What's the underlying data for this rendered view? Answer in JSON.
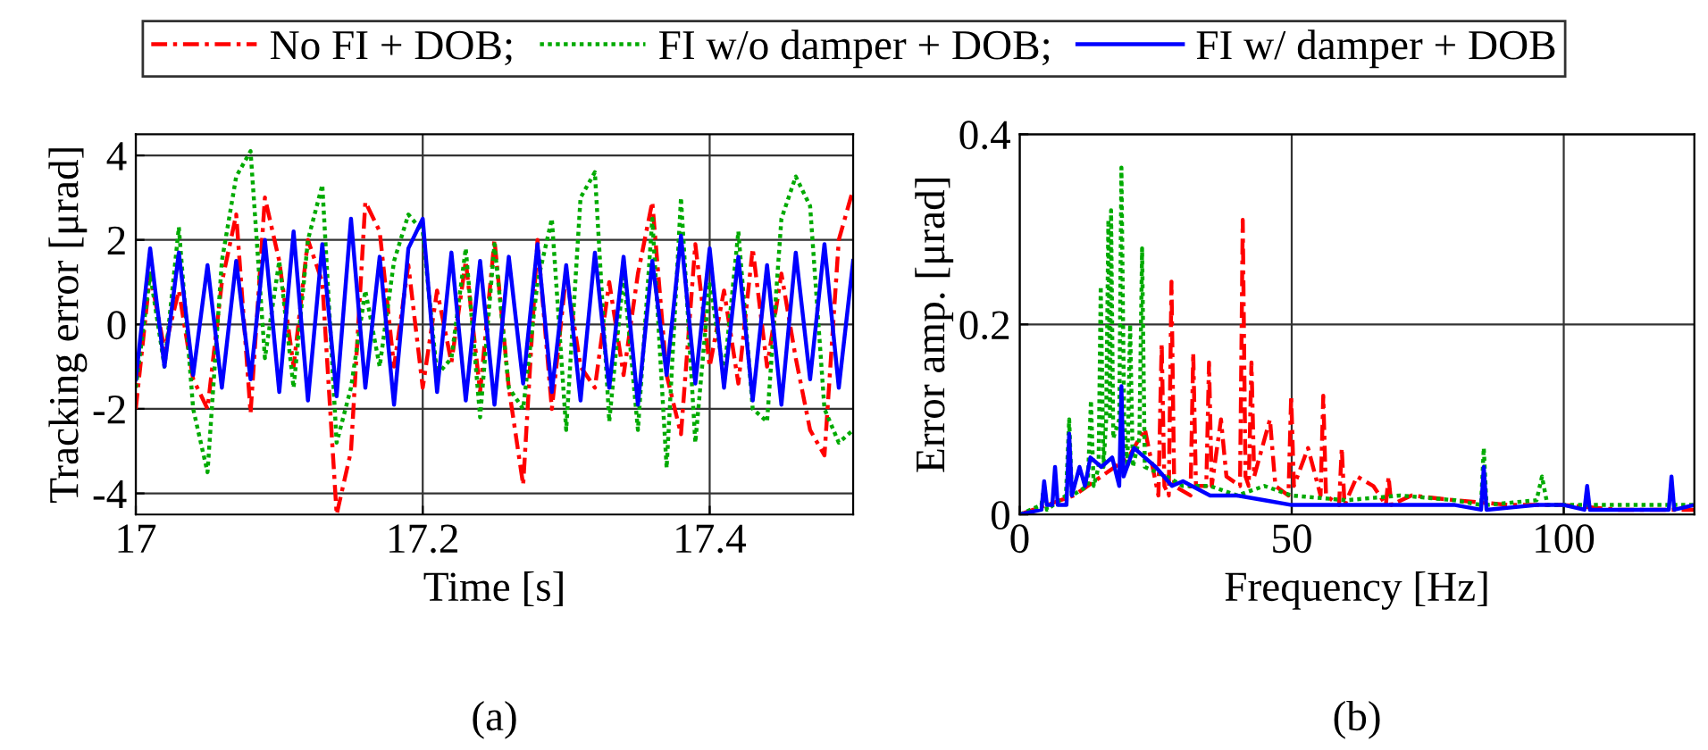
{
  "chart_data": [
    {
      "type": "line",
      "xlabel": "Time [s]",
      "ylabel": "Tracking error [μrad]",
      "annotations": [
        "(a)"
      ],
      "xlim": [
        17,
        17.5
      ],
      "ylim": [
        -4.5,
        4.5
      ],
      "xticks": [
        17,
        17.2,
        17.4
      ],
      "yticks": [
        -4,
        -2,
        0,
        2,
        4
      ],
      "grid": true,
      "legend": "top",
      "x": [
        17.0,
        17.01,
        17.02,
        17.03,
        17.04,
        17.05,
        17.06,
        17.07,
        17.08,
        17.09,
        17.1,
        17.11,
        17.12,
        17.13,
        17.14,
        17.15,
        17.16,
        17.17,
        17.18,
        17.19,
        17.2,
        17.21,
        17.22,
        17.23,
        17.24,
        17.25,
        17.26,
        17.27,
        17.28,
        17.29,
        17.3,
        17.31,
        17.32,
        17.33,
        17.34,
        17.35,
        17.36,
        17.37,
        17.38,
        17.39,
        17.4,
        17.41,
        17.42,
        17.43,
        17.44,
        17.45,
        17.46,
        17.47,
        17.48,
        17.49,
        17.5
      ],
      "series": [
        {
          "name": "No FI + DOB;",
          "color": "#ff0000",
          "line_style": "dashed",
          "values": [
            -2.0,
            1.2,
            -0.6,
            0.8,
            -1.3,
            -2.0,
            1.0,
            2.6,
            -2.1,
            3.0,
            1.5,
            -1.0,
            2.0,
            1.0,
            -4.5,
            -3.0,
            2.9,
            2.2,
            -1.0,
            1.4,
            -1.5,
            0.8,
            -0.9,
            1.5,
            -1.6,
            2.0,
            -1.5,
            -3.8,
            2.0,
            -2.0,
            1.2,
            -1.0,
            -1.5,
            1.0,
            -1.2,
            1.2,
            2.9,
            -1.2,
            -2.6,
            1.9,
            -1.0,
            0.8,
            -1.4,
            1.8,
            -1.0,
            1.2,
            -0.8,
            -2.5,
            -3.1,
            2.0,
            3.2
          ]
        },
        {
          "name": "FI w/o damper + DOB;",
          "color": "#00aa00",
          "line_style": "dotted",
          "values": [
            -1.5,
            1.2,
            -1.0,
            2.3,
            -2.0,
            -3.5,
            1.5,
            3.5,
            4.1,
            -0.8,
            1.5,
            -1.5,
            2.0,
            3.3,
            -2.8,
            -1.5,
            0.8,
            -1.0,
            1.5,
            2.6,
            2.2,
            -1.2,
            -0.8,
            1.8,
            -2.2,
            1.9,
            -1.5,
            -2.0,
            1.0,
            2.5,
            -2.5,
            3.0,
            3.6,
            -2.3,
            1.2,
            -2.5,
            2.5,
            -3.4,
            3.0,
            -2.8,
            1.0,
            -1.2,
            2.2,
            -2.0,
            -2.3,
            2.5,
            3.5,
            2.8,
            -2.0,
            -2.8,
            -2.5
          ]
        },
        {
          "name": "FI w/ damper + DOB",
          "color": "#0000ff",
          "line_style": "solid",
          "values": [
            -1.3,
            1.8,
            -1.0,
            1.7,
            -1.2,
            1.4,
            -1.5,
            1.5,
            -1.3,
            2.0,
            -1.6,
            2.2,
            -1.8,
            1.9,
            -1.7,
            2.5,
            -1.5,
            1.6,
            -1.9,
            1.8,
            2.5,
            -1.6,
            1.7,
            -1.8,
            1.5,
            -1.9,
            1.6,
            -1.4,
            1.9,
            -1.6,
            1.4,
            -1.8,
            1.7,
            -1.5,
            1.6,
            -1.9,
            1.5,
            -1.2,
            2.1,
            -1.4,
            1.8,
            -1.5,
            1.6,
            -1.8,
            1.4,
            -1.9,
            1.7,
            -1.3,
            1.9,
            -1.5,
            1.5
          ]
        }
      ]
    },
    {
      "type": "line",
      "xlabel": "Frequency [Hz]",
      "ylabel": "Error amp. [μrad]",
      "annotations": [
        "(b)"
      ],
      "xlim": [
        0,
        124
      ],
      "ylim": [
        0,
        0.4
      ],
      "xticks": [
        0,
        50,
        100
      ],
      "yticks": [
        0,
        0.2,
        0.4
      ],
      "grid": true,
      "series": [
        {
          "color": "#ff0000",
          "line_style": "dashed",
          "x": [
            0,
            10,
            15,
            20,
            23,
            25.5,
            26.1,
            26.6,
            27.4,
            27.9,
            28.4,
            31.4,
            31.9,
            32.4,
            34.3,
            34.8,
            35.3,
            37,
            38,
            40.5,
            41,
            41.5,
            42.1,
            42.6,
            43.1,
            46,
            47,
            49.4,
            49.9,
            50.4,
            53,
            55.3,
            55.8,
            56.3,
            58.7,
            59.2,
            59.7,
            62,
            65,
            67.3,
            67.8,
            68.3,
            72,
            80,
            90,
            100,
            110,
            124
          ],
          "values": [
            0,
            0.02,
            0.04,
            0.06,
            0.09,
            0.02,
            0.18,
            0.03,
            0.02,
            0.245,
            0.03,
            0.02,
            0.17,
            0.03,
            0.03,
            0.16,
            0.03,
            0.1,
            0.04,
            0.03,
            0.31,
            0.04,
            0.03,
            0.16,
            0.04,
            0.1,
            0.03,
            0.02,
            0.125,
            0.03,
            0.07,
            0.02,
            0.125,
            0.02,
            0.01,
            0.07,
            0.01,
            0.04,
            0.03,
            0.01,
            0.04,
            0.01,
            0.02,
            0.015,
            0.01,
            0.01,
            0.005,
            0.005
          ]
        },
        {
          "color": "#00aa00",
          "line_style": "dotted",
          "x": [
            0,
            4,
            4.5,
            5,
            8.5,
            9.1,
            9.6,
            12.5,
            13.1,
            13.6,
            14.5,
            14.9,
            15.4,
            15.9,
            16.3,
            16.6,
            16.8,
            17.2,
            18.3,
            18.7,
            19.2,
            19.8,
            20.3,
            20.8,
            22,
            22.5,
            23,
            27,
            30,
            35,
            40,
            45,
            50,
            60,
            70,
            80,
            84.8,
            85.3,
            85.8,
            95,
            96,
            97,
            110,
            120,
            124
          ],
          "values": [
            0,
            0.01,
            0.03,
            0.005,
            0.02,
            0.1,
            0.02,
            0.03,
            0.12,
            0.03,
            0.05,
            0.24,
            0.05,
            0.1,
            0.31,
            0.1,
            0.32,
            0.08,
            0.1,
            0.365,
            0.1,
            0.05,
            0.2,
            0.05,
            0.08,
            0.28,
            0.05,
            0.04,
            0.03,
            0.03,
            0.02,
            0.03,
            0.02,
            0.015,
            0.02,
            0.015,
            0.01,
            0.07,
            0.01,
            0.015,
            0.04,
            0.01,
            0.01,
            0.01,
            0.01
          ]
        },
        {
          "color": "#0000ff",
          "line_style": "solid",
          "x": [
            0,
            4,
            4.5,
            5,
            6,
            6.5,
            7,
            8.6,
            9.1,
            9.6,
            11,
            12,
            13,
            15,
            17,
            18.3,
            18.7,
            19.1,
            21,
            23,
            25,
            28,
            30,
            35,
            40,
            45,
            50,
            60,
            70,
            80,
            84.8,
            85.3,
            85.8,
            95,
            100,
            103.8,
            104.3,
            104.8,
            110,
            119.3,
            119.8,
            120.3,
            124
          ],
          "values": [
            0,
            0.005,
            0.035,
            0.01,
            0.01,
            0.05,
            0.01,
            0.01,
            0.085,
            0.02,
            0.05,
            0.03,
            0.06,
            0.05,
            0.06,
            0.03,
            0.135,
            0.04,
            0.07,
            0.06,
            0.05,
            0.03,
            0.035,
            0.02,
            0.02,
            0.015,
            0.01,
            0.01,
            0.01,
            0.01,
            0.005,
            0.05,
            0.005,
            0.01,
            0.01,
            0.005,
            0.03,
            0.005,
            0.005,
            0.005,
            0.04,
            0.005,
            0.01
          ]
        }
      ]
    }
  ]
}
